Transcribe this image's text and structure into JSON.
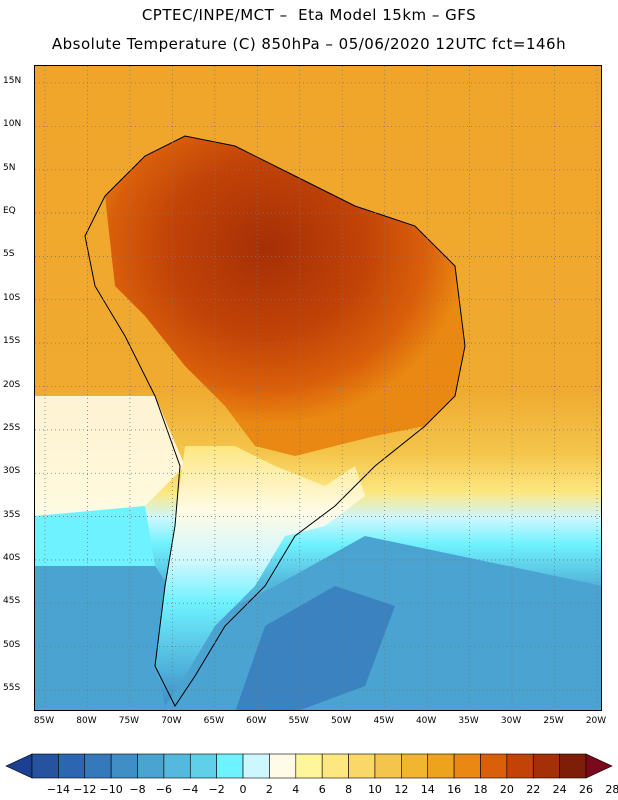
{
  "header": {
    "title_line1": "CPTEC/INPE/MCT –  Eta Model 15km – GFS",
    "title_line2": "Absolute Temperature (C) 850hPa – 05/06/2020 12UTC fct=146h"
  },
  "map": {
    "latitude_labels": [
      "15N",
      "10N",
      "5N",
      "EQ",
      "5S",
      "10S",
      "15S",
      "20S",
      "25S",
      "30S",
      "35S",
      "40S",
      "45S",
      "50S",
      "55S"
    ],
    "longitude_labels": [
      "85W",
      "80W",
      "75W",
      "70W",
      "65W",
      "60W",
      "55W",
      "50W",
      "45W",
      "40W",
      "35W",
      "30W",
      "25W",
      "20W"
    ],
    "grid_lines": true,
    "grid_style": "dotted"
  },
  "legend": {
    "tick_labels": [
      "-14",
      "-12",
      "-10",
      "-8",
      "-6",
      "-4",
      "-2",
      "0",
      "2",
      "4",
      "6",
      "8",
      "10",
      "12",
      "14",
      "16",
      "18",
      "20",
      "22",
      "24",
      "26",
      "28"
    ],
    "colors": [
      "#1c3f94",
      "#25539f",
      "#2d66b0",
      "#3679bb",
      "#3f8fc6",
      "#4aa3d1",
      "#55b8dc",
      "#5fd0e8",
      "#6ff2ff",
      "#cdf7ff",
      "#fffbe6",
      "#fff59b",
      "#fde781",
      "#f9d768",
      "#f4c54c",
      "#f2b530",
      "#eea31d",
      "#e98812",
      "#da5f0a",
      "#c24307",
      "#a52f06",
      "#7d1e08",
      "#7a0a1b"
    ]
  },
  "colors": {
    "ocean_tropical": "#f0a52a",
    "land_hot": "#b9480f",
    "land_warm": "#e07a18",
    "cool_band": "#fff6c8",
    "cold_ocean": "#3a9fd6",
    "coast_line": "#000000"
  }
}
